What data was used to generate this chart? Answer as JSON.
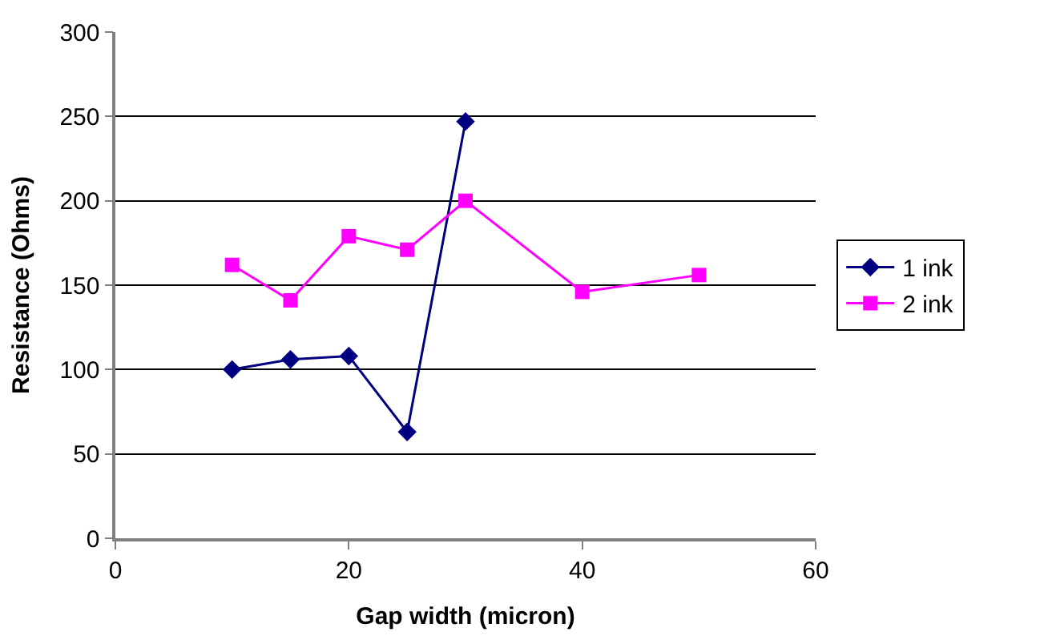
{
  "chart_data": {
    "type": "line",
    "xlabel": "Gap width (micron)",
    "ylabel": "Resistance (Ohms)",
    "xlim": [
      0,
      60
    ],
    "xticks": [
      0,
      20,
      40,
      60
    ],
    "ylim": [
      0,
      300
    ],
    "yticks": [
      0,
      50,
      100,
      150,
      200,
      250,
      300
    ],
    "grid": "y",
    "legend": "right",
    "series": [
      {
        "name": "1 ink",
        "color": "#000080",
        "marker": "diamond",
        "x": [
          10,
          15,
          20,
          25,
          30
        ],
        "values": [
          100,
          106,
          108,
          63,
          247
        ]
      },
      {
        "name": "2 ink",
        "color": "#ff00ff",
        "marker": "square",
        "x": [
          10,
          15,
          20,
          25,
          30,
          40,
          50
        ],
        "values": [
          162,
          141,
          179,
          171,
          200,
          146,
          156
        ]
      }
    ]
  }
}
